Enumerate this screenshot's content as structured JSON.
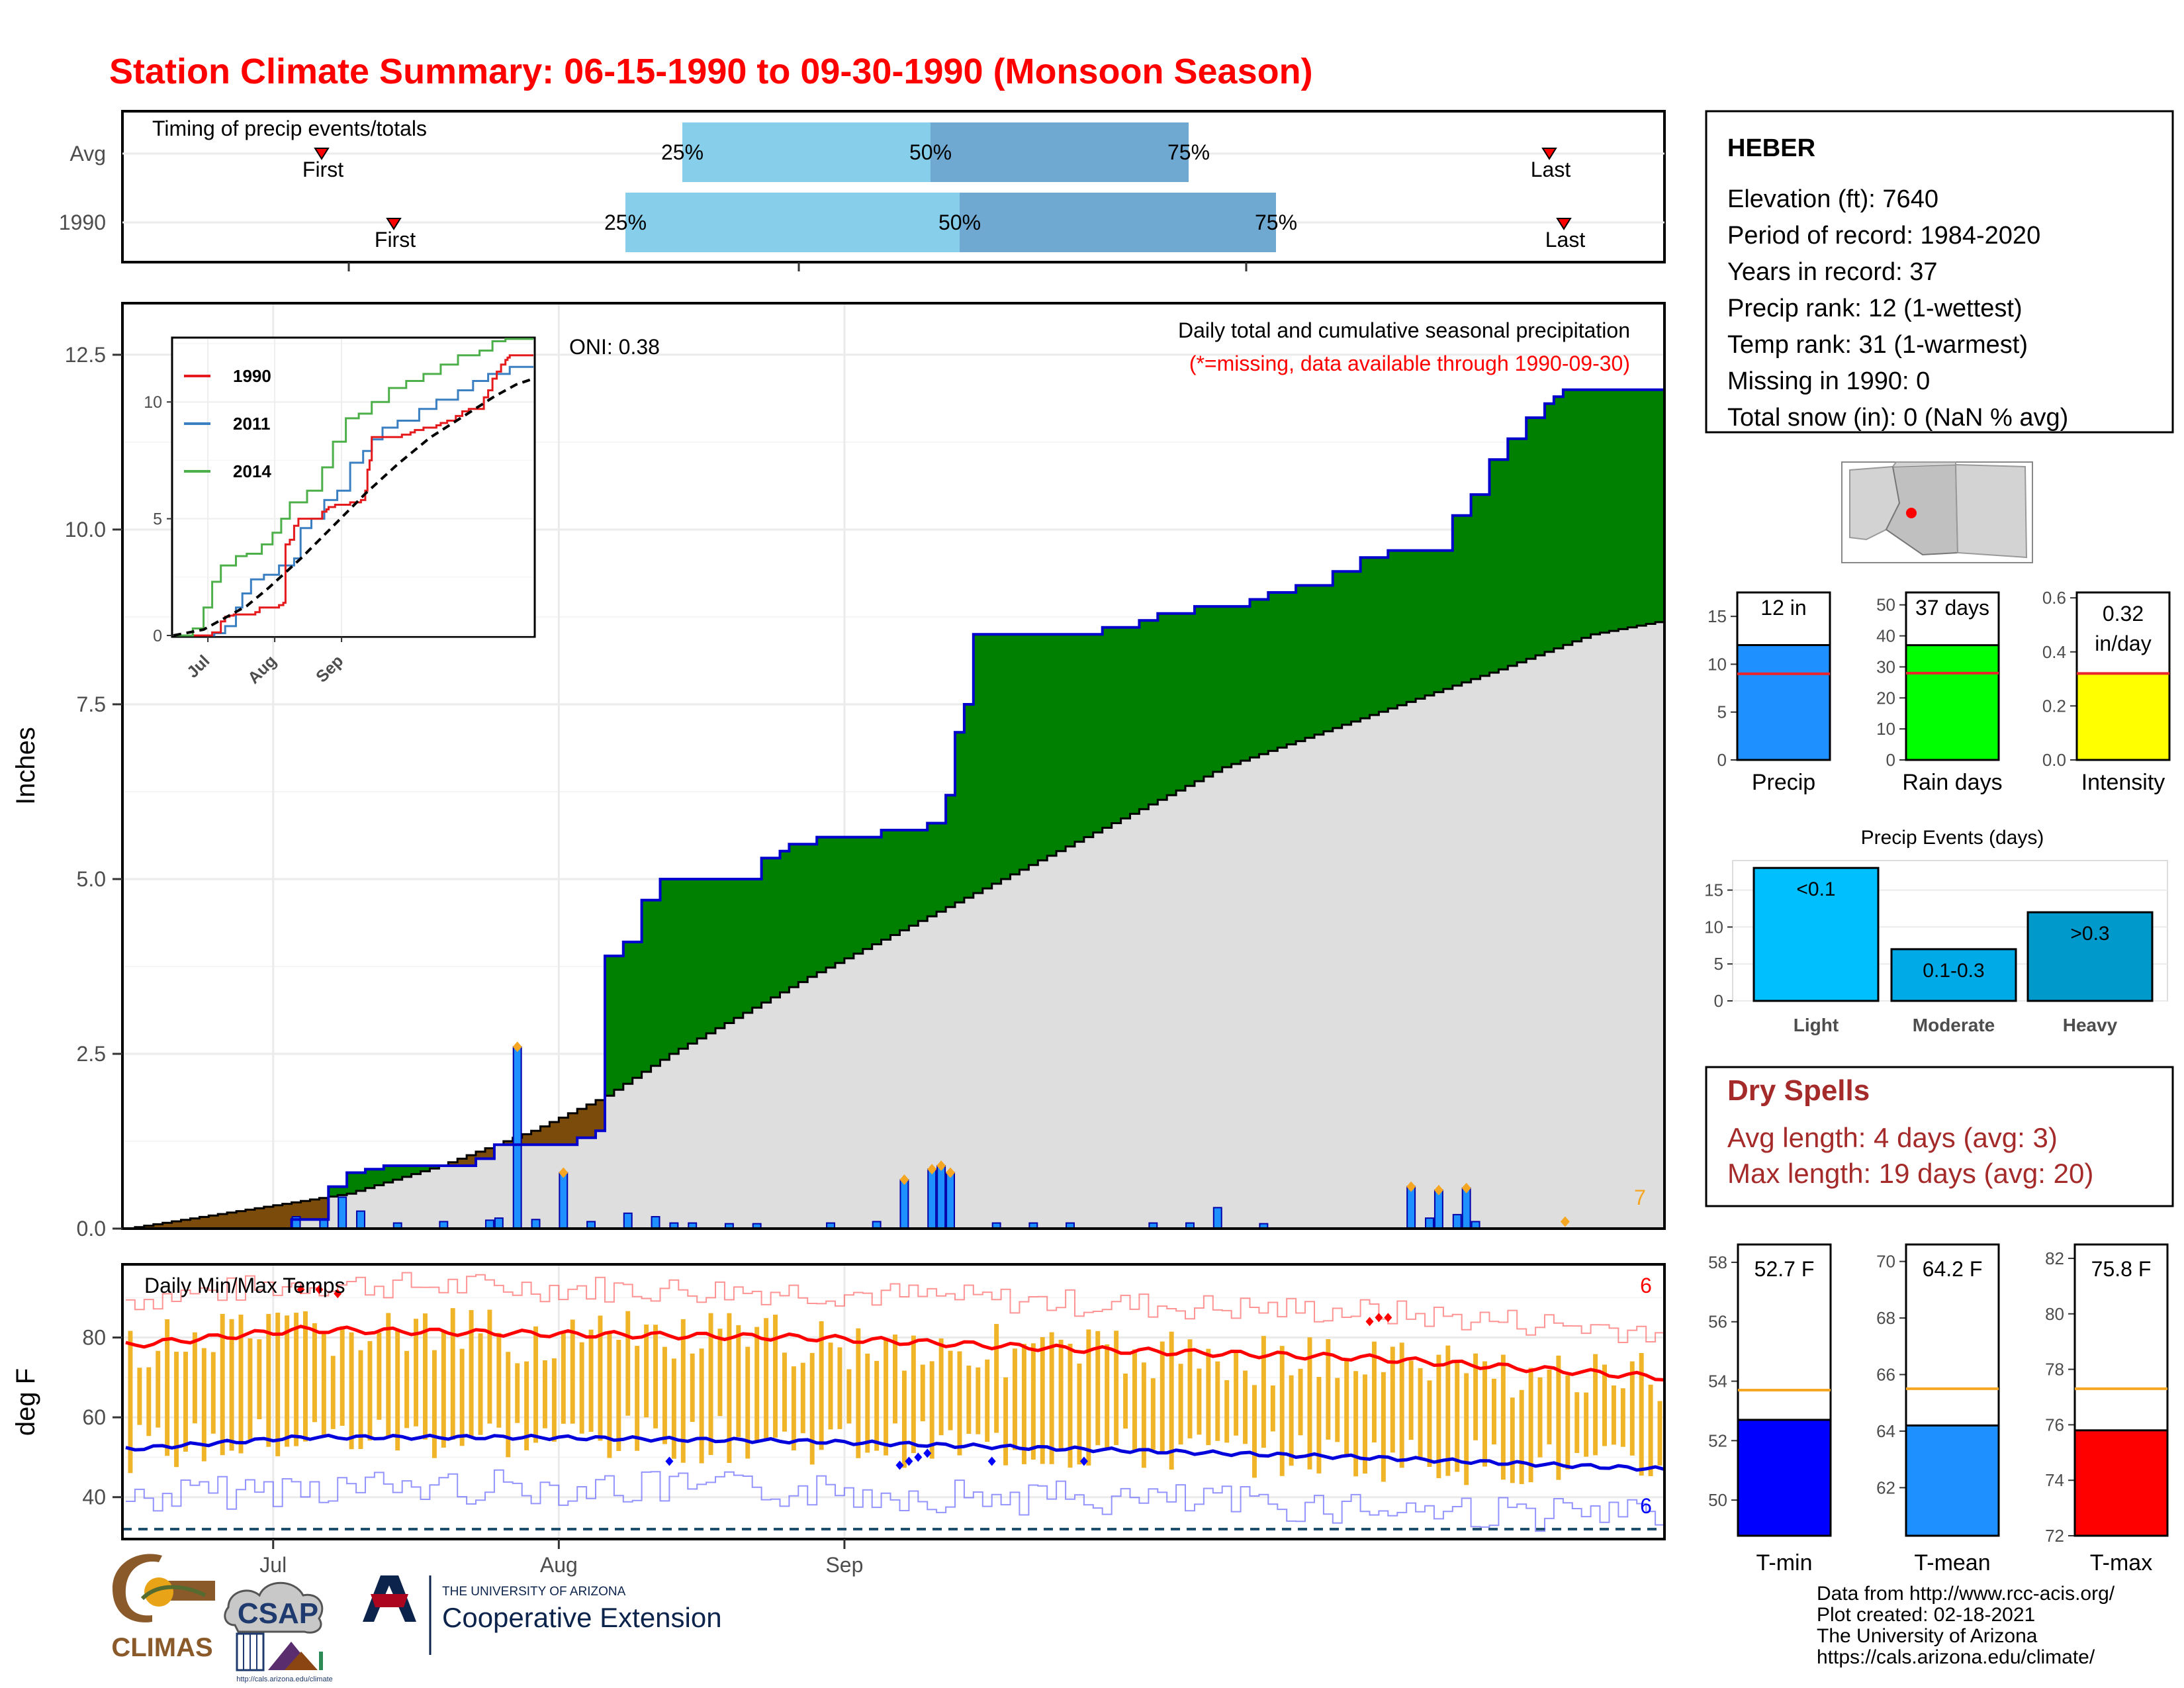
{
  "title": "Station Climate Summary: 06-15-1990 to 09-30-1990 (Monsoon Season)",
  "colors": {
    "title": "#ff0000",
    "cumulative_year": "#0000cc",
    "above_avg_fill": "#008000",
    "below_avg_fill": "#7a4b0a",
    "avg_fill": "#dedede",
    "daily_bar": "#1e90ff",
    "max_marker": "#f5a623",
    "tmax_line": "#ff0000",
    "tmin_line": "#0000dd",
    "temp_bar": "#f0b429",
    "dry_spells": "#a52a2a"
  },
  "timing": {
    "title": "Timing of precip events/totals",
    "row_labels": [
      "Avg",
      "1990"
    ],
    "avg": {
      "first": "First",
      "p25": "25%",
      "p50": "50%",
      "p75": "75%",
      "last": "Last"
    },
    "year": {
      "first": "First",
      "p25": "25%",
      "p50": "50%",
      "p75": "75%",
      "last": "Last"
    }
  },
  "precip_panel": {
    "ylabel": "Inches",
    "oni": "ONI: 0.38",
    "note_title": "Daily total and cumulative seasonal precipitation",
    "note_missing": "(*=missing, data available through 1990-09-30)",
    "count_label": "7",
    "ytick_labels": [
      "0.0",
      "2.5",
      "5.0",
      "7.5",
      "10.0",
      "12.5"
    ]
  },
  "inset": {
    "legend": [
      "1990",
      "2011",
      "2014"
    ],
    "ytick_labels": [
      "0",
      "5",
      "10"
    ],
    "xtick_labels": [
      "Jul",
      "Aug",
      "Sep"
    ]
  },
  "temp_panel": {
    "title": "Daily Min/Max Temps",
    "ylabel": "deg F",
    "ytick_labels": [
      "40",
      "60",
      "80"
    ],
    "count_max": "6",
    "count_min": "6",
    "xtick_labels": [
      "Jul",
      "Aug",
      "Sep"
    ]
  },
  "station": {
    "name": "HEBER",
    "elevation": "Elevation (ft): 7640",
    "period": "Period of record: 1984-2020",
    "years": "Years in record: 37",
    "precip_rank": "Precip rank: 12 (1-wettest)",
    "temp_rank": "Temp rank: 31 (1-warmest)",
    "missing": "Missing in 1990: 0",
    "snow": "Total snow (in): 0 (NaN % avg)"
  },
  "mini_bars": [
    {
      "label": "Precip",
      "value_text": "12 in",
      "value": 12,
      "avg": 9,
      "ymax": 17.5,
      "ticks": [
        "0",
        "5",
        "10",
        "15"
      ],
      "tick_vals": [
        0,
        5,
        10,
        15
      ],
      "color": "#1e90ff"
    },
    {
      "label": "Rain days",
      "value_text": "37 days",
      "value": 37,
      "avg": 28,
      "ymax": 54,
      "ticks": [
        "0",
        "10",
        "20",
        "30",
        "40",
        "50"
      ],
      "tick_vals": [
        0,
        10,
        20,
        30,
        40,
        50
      ],
      "color": "#00ff00"
    },
    {
      "label": "Intensity",
      "value_text": "0.32\nin/day",
      "value": 0.32,
      "avg": 0.32,
      "ymax": 0.62,
      "ticks": [
        "0.0",
        "0.2",
        "0.4",
        "0.6"
      ],
      "tick_vals": [
        0,
        0.2,
        0.4,
        0.6
      ],
      "color": "#ffff00"
    }
  ],
  "events": {
    "title": "Precip Events (days)",
    "categories": [
      "Light",
      "Moderate",
      "Heavy"
    ],
    "bar_labels": [
      "<0.1",
      "0.1-0.3",
      ">0.3"
    ],
    "values": [
      18,
      7,
      12
    ],
    "ticks": [
      "0",
      "5",
      "10",
      "15"
    ],
    "colors": [
      "#00bfff",
      "#00aae6",
      "#0099cc"
    ]
  },
  "dry_spells": {
    "title": "Dry Spells",
    "avg": "Avg length: 4 days (avg: 3)",
    "max": "Max length: 19 days (avg: 20)"
  },
  "temp_bars": [
    {
      "label": "T-min",
      "value_text": "52.7 F",
      "value": 52.7,
      "avg": 53.7,
      "ymin": 48.8,
      "ymax": 58.6,
      "ticks": [
        "50",
        "52",
        "54",
        "56",
        "58"
      ],
      "tick_vals": [
        50,
        52,
        54,
        56,
        58
      ],
      "color": "#0000ff"
    },
    {
      "label": "T-mean",
      "value_text": "64.2 F",
      "value": 64.2,
      "avg": 65.5,
      "ymin": 60.3,
      "ymax": 70.6,
      "ticks": [
        "62",
        "64",
        "66",
        "68",
        "70"
      ],
      "tick_vals": [
        62,
        64,
        66,
        68,
        70
      ],
      "color": "#1e90ff"
    },
    {
      "label": "T-max",
      "value_text": "75.8 F",
      "value": 75.8,
      "avg": 77.3,
      "ymin": 72,
      "ymax": 82.5,
      "ticks": [
        "72",
        "74",
        "76",
        "78",
        "80",
        "82"
      ],
      "tick_vals": [
        72,
        74,
        76,
        78,
        80,
        82
      ],
      "color": "#ff0000"
    }
  ],
  "footer": {
    "lines": [
      "Data from http://www.rcc-acis.org/",
      "Plot created: 02-18-2021",
      "The University of Arizona",
      "https://cals.arizona.edu/climate/"
    ],
    "logo_climas": "CLIMAS",
    "logo_csap": "CSAP",
    "logo_csap_url": "http://cals.arizona.edu/climate",
    "ua_top": "THE UNIVERSITY OF ARIZONA",
    "ua_bottom": "Cooperative Extension"
  },
  "chart_data": {
    "type": "area",
    "title": "Daily total and cumulative seasonal precipitation",
    "ylabel": "Inches",
    "ylim": [
      0,
      13.2
    ],
    "x_start": "1990-06-15",
    "x_end": "1990-09-30",
    "xtick_labels": [
      "Jul",
      "Aug",
      "Sep"
    ],
    "cumulative_1990_steps": [
      [
        16,
        0
      ],
      [
        34,
        0.13
      ],
      [
        38,
        0.6
      ],
      [
        40,
        0.8
      ],
      [
        42,
        0.85
      ],
      [
        44,
        0.9
      ],
      [
        51,
        0.9
      ],
      [
        54,
        1.0
      ],
      [
        56,
        1.2
      ],
      [
        65,
        1.3
      ],
      [
        67,
        1.4
      ],
      [
        68,
        3.9
      ],
      [
        70,
        4.1
      ],
      [
        72,
        4.7
      ],
      [
        74,
        5.0
      ],
      [
        83,
        5.0
      ],
      [
        85,
        5.3
      ],
      [
        87,
        5.4
      ],
      [
        88,
        5.5
      ],
      [
        91,
        5.6
      ],
      [
        96,
        5.6
      ],
      [
        98,
        5.7
      ],
      [
        103,
        5.8
      ],
      [
        105,
        6.2
      ],
      [
        106,
        7.1
      ],
      [
        107,
        7.5
      ],
      [
        108,
        8.5
      ],
      [
        120,
        8.5
      ],
      [
        122,
        8.6
      ],
      [
        126,
        8.7
      ],
      [
        128,
        8.8
      ],
      [
        132,
        8.9
      ],
      [
        135,
        8.9
      ],
      [
        138,
        9.0
      ],
      [
        140,
        9.1
      ],
      [
        143,
        9.2
      ],
      [
        147,
        9.4
      ],
      [
        150,
        9.6
      ],
      [
        153,
        9.7
      ],
      [
        157,
        9.7
      ],
      [
        160,
        10.2
      ],
      [
        162,
        10.5
      ],
      [
        164,
        11.0
      ],
      [
        166,
        11.3
      ],
      [
        168,
        11.6
      ],
      [
        170,
        11.8
      ],
      [
        171,
        11.9
      ],
      [
        172,
        12.0
      ],
      [
        183,
        12.0
      ]
    ],
    "average_cumulative": [
      [
        16,
        0
      ],
      [
        40,
        0.5
      ],
      [
        50,
        0.9
      ],
      [
        60,
        1.4
      ],
      [
        68,
        1.9
      ],
      [
        75,
        2.5
      ],
      [
        90,
        3.6
      ],
      [
        105,
        4.6
      ],
      [
        120,
        5.6
      ],
      [
        135,
        6.6
      ],
      [
        150,
        7.3
      ],
      [
        165,
        8.0
      ],
      [
        175,
        8.5
      ],
      [
        183,
        8.7
      ]
    ],
    "daily_precip": [
      [
        34,
        0.17
      ],
      [
        37,
        0.13
      ],
      [
        39,
        0.45
      ],
      [
        41,
        0.25
      ],
      [
        45,
        0.08
      ],
      [
        50,
        0.1
      ],
      [
        55,
        0.12
      ],
      [
        56,
        0.15
      ],
      [
        58,
        2.6
      ],
      [
        60,
        0.13
      ],
      [
        63,
        0.8
      ],
      [
        66,
        0.1
      ],
      [
        70,
        0.22
      ],
      [
        73,
        0.17
      ],
      [
        75,
        0.08
      ],
      [
        77,
        0.08
      ],
      [
        81,
        0.07
      ],
      [
        84,
        0.07
      ],
      [
        92,
        0.08
      ],
      [
        97,
        0.1
      ],
      [
        100,
        0.7
      ],
      [
        103,
        0.85
      ],
      [
        104,
        0.9
      ],
      [
        105,
        0.8
      ],
      [
        110,
        0.08
      ],
      [
        114,
        0.08
      ],
      [
        118,
        0.08
      ],
      [
        127,
        0.08
      ],
      [
        131,
        0.08
      ],
      [
        134,
        0.3
      ],
      [
        139,
        0.07
      ],
      [
        155,
        0.6
      ],
      [
        157,
        0.15
      ],
      [
        158,
        0.55
      ],
      [
        160,
        0.2
      ],
      [
        161,
        0.58
      ],
      [
        162,
        0.1
      ]
    ],
    "inset": {
      "series": [
        "1990",
        "2011",
        "2014",
        "average (dashed)"
      ],
      "ylim": [
        0,
        12.7
      ],
      "xtick_labels": [
        "Jul",
        "Aug",
        "Sep"
      ]
    },
    "temps": {
      "ylabel": "deg F",
      "ylim": [
        30,
        98
      ],
      "avg_tmax_approx": [
        78,
        82,
        81,
        80,
        77,
        75,
        70
      ],
      "avg_tmin_approx": [
        52,
        55,
        55,
        54,
        52,
        50,
        47
      ],
      "freeze_line": 32
    }
  }
}
